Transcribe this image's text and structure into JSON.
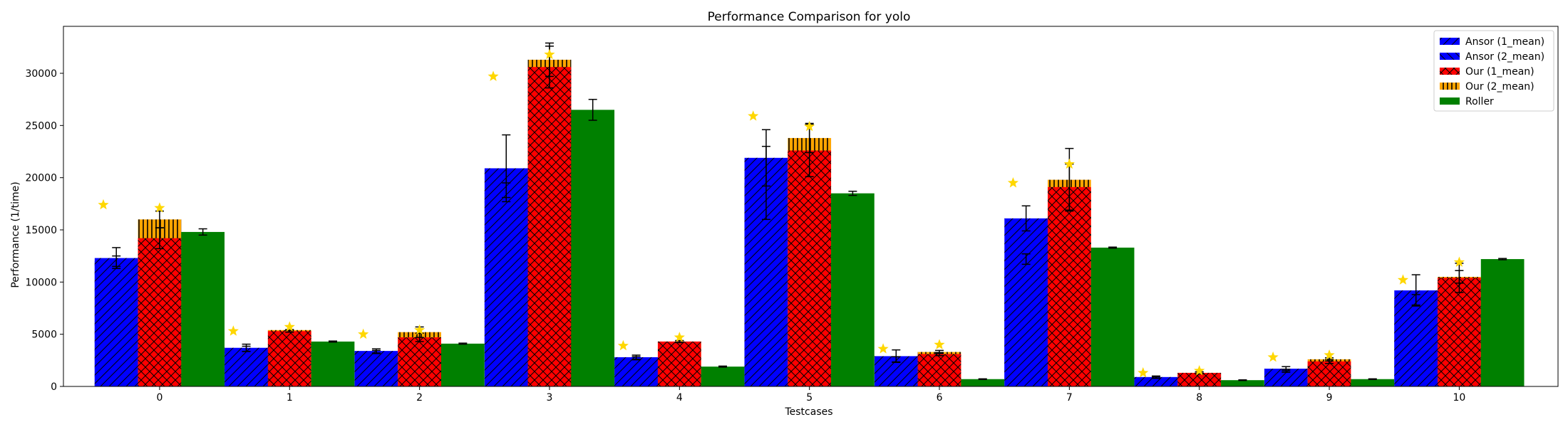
{
  "chart_data": {
    "type": "bar",
    "title": "Performance Comparison for yolo",
    "xlabel": "Testcases",
    "ylabel": "Performance (1/time)",
    "categories": [
      "0",
      "1",
      "2",
      "3",
      "4",
      "5",
      "6",
      "7",
      "8",
      "9",
      "10"
    ],
    "ylim": [
      0,
      34500
    ],
    "yticks": [
      0,
      5000,
      10000,
      15000,
      20000,
      25000,
      30000
    ],
    "grid": false,
    "legend_position": "top-right",
    "series": [
      {
        "name": "Ansor (1_mean)",
        "color": "#0000ff",
        "hatch": "diagonal-slash",
        "values": [
          12300,
          3700,
          3400,
          20900,
          2800,
          21900,
          2900,
          16100,
          900,
          1700,
          9200
        ],
        "error": [
          1000,
          350,
          200,
          3200,
          200,
          2700,
          600,
          1200,
          100,
          200,
          1500
        ]
      },
      {
        "name": "Ansor (2_mean)",
        "color": "#0000ff",
        "hatch": "diagonal-backslash",
        "values": [
          12000,
          3600,
          3300,
          18800,
          2700,
          19500,
          2600,
          12200,
          850,
          1500,
          8300
        ],
        "error": [
          500,
          250,
          150,
          700,
          150,
          3500,
          250,
          500,
          80,
          150,
          500
        ]
      },
      {
        "name": "Our (1_mean)",
        "color": "#ff0000",
        "hatch": "cross",
        "values": [
          14200,
          5300,
          4700,
          30600,
          4300,
          22600,
          3100,
          19100,
          1300,
          2400,
          10400
        ],
        "error": [
          1000,
          100,
          400,
          2000,
          100,
          2500,
          150,
          2200,
          100,
          200,
          1400
        ]
      },
      {
        "name": "Our (2_mean)",
        "color": "#ffa500",
        "hatch": "vertical",
        "values": [
          16000,
          5400,
          5200,
          31300,
          4300,
          23800,
          3300,
          19800,
          1300,
          2600,
          10500
        ],
        "error": [
          800,
          50,
          500,
          1600,
          80,
          1400,
          150,
          3000,
          80,
          150,
          600
        ]
      },
      {
        "name": "Roller",
        "color": "#008000",
        "hatch": "none",
        "values": [
          14800,
          4300,
          4100,
          26500,
          1900,
          18500,
          700,
          13300,
          600,
          700,
          12200
        ],
        "error": [
          300,
          50,
          50,
          1000,
          50,
          200,
          30,
          50,
          30,
          30,
          60
        ]
      }
    ],
    "markers": {
      "shape": "star",
      "color": "#ffd700",
      "ansor_best": [
        17400,
        5300,
        5000,
        29700,
        3900,
        25900,
        3600,
        19500,
        1300,
        2800,
        10200
      ],
      "our_best": [
        17100,
        5700,
        5400,
        31800,
        4700,
        24900,
        4000,
        21300,
        1500,
        3000,
        11900
      ]
    }
  }
}
